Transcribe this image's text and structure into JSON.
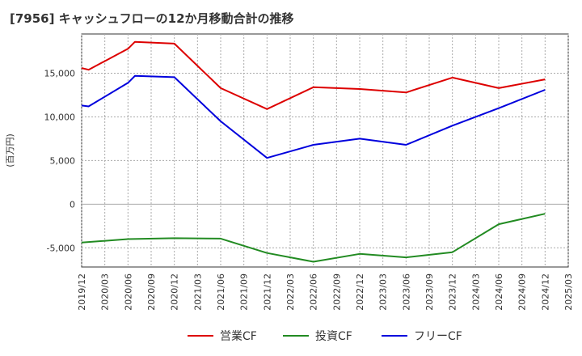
{
  "chart_data": {
    "type": "line",
    "title": "[7956]  キャッシュフローの12か月移動合計の推移",
    "ylabel": "(百万円)",
    "ylim": [
      -7200,
      19500
    ],
    "yticks": [
      -5000,
      0,
      5000,
      10000,
      15000
    ],
    "ytick_labels": [
      "-5,000",
      "0",
      "5,000",
      "10,000",
      "15,000"
    ],
    "x_ticks": [
      "2019/12",
      "2020/03",
      "2020/06",
      "2020/09",
      "2020/12",
      "2021/03",
      "2021/06",
      "2021/09",
      "2021/12",
      "2022/03",
      "2022/06",
      "2022/09",
      "2022/12",
      "2023/03",
      "2023/06",
      "2023/09",
      "2023/12",
      "2024/03",
      "2024/06",
      "2024/09",
      "2024/12",
      "2025/03"
    ],
    "series": [
      {
        "name": "営業CF",
        "color": "#dd0000",
        "points": [
          [
            0,
            15600
          ],
          [
            0.3,
            15400
          ],
          [
            2,
            17800
          ],
          [
            2.3,
            18600
          ],
          [
            4,
            18400
          ],
          [
            6,
            13300
          ],
          [
            8,
            10900
          ],
          [
            10,
            13400
          ],
          [
            12,
            13200
          ],
          [
            14,
            12800
          ],
          [
            16,
            14500
          ],
          [
            18,
            13300
          ],
          [
            20,
            14300
          ]
        ]
      },
      {
        "name": "投資CF",
        "color": "#228b22",
        "points": [
          [
            0,
            -4400
          ],
          [
            2,
            -4000
          ],
          [
            4,
            -3900
          ],
          [
            6,
            -3950
          ],
          [
            8,
            -5600
          ],
          [
            10,
            -6600
          ],
          [
            12,
            -5700
          ],
          [
            14,
            -6100
          ],
          [
            16,
            -5500
          ],
          [
            18,
            -2300
          ],
          [
            20,
            -1100
          ]
        ]
      },
      {
        "name": "フリーCF",
        "color": "#0000dd",
        "points": [
          [
            0,
            11300
          ],
          [
            0.3,
            11200
          ],
          [
            2,
            13900
          ],
          [
            2.3,
            14700
          ],
          [
            4,
            14550
          ],
          [
            6,
            9500
          ],
          [
            8,
            5300
          ],
          [
            10,
            6800
          ],
          [
            12,
            7500
          ],
          [
            14,
            6800
          ],
          [
            16,
            9000
          ],
          [
            18,
            11000
          ],
          [
            20,
            13100
          ]
        ]
      }
    ]
  }
}
